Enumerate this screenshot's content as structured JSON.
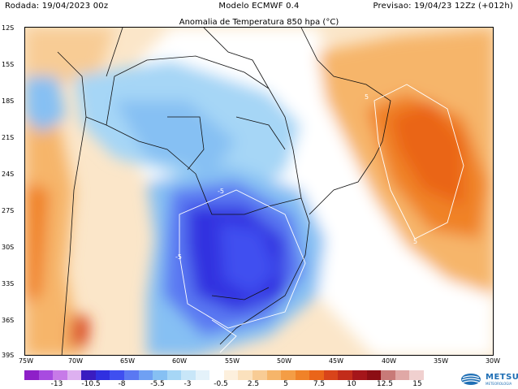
{
  "header": {
    "run_label": "Rodada: 19/04/2023 00z",
    "model_label": "Modelo ECMWF 0.4",
    "forecast_label": "Previsao: 19/04/23 12Zz (+012h)"
  },
  "map": {
    "title": "Anomalia de Temperatura 850 hpa (°C)",
    "lat_labels": [
      "12S",
      "15S",
      "18S",
      "21S",
      "24S",
      "27S",
      "30S",
      "33S",
      "36S",
      "39S"
    ],
    "lon_labels": [
      "75W",
      "70W",
      "65W",
      "60W",
      "55W",
      "50W",
      "45W",
      "40W",
      "35W",
      "30W"
    ],
    "contour_labels": [
      "5",
      "-5",
      "5",
      "-5"
    ],
    "colors": {
      "ocean_bg": "#fbe6c9",
      "deep_blue": "#2a1fe0",
      "blue": "#4f6ff0",
      "light_blue": "#8fc3f2",
      "pale_blue": "#cfe6f8",
      "orange": "#f6a748",
      "dark_orange": "#f0701f",
      "red_orange": "#e85118"
    }
  },
  "colorbar": {
    "tick_labels": [
      "-13",
      "-10.5",
      "-8",
      "-5.5",
      "-3",
      "-0.5",
      "2.5",
      "5",
      "7.5",
      "10",
      "12.5",
      "15"
    ],
    "colors": [
      "#8e1fc8",
      "#a84be0",
      "#c77ae8",
      "#ddb0f0",
      "#3a1cc0",
      "#3030e0",
      "#3f4ff0",
      "#5a78f2",
      "#6fa0f3",
      "#86c0f3",
      "#a6d6f6",
      "#c8e6f8",
      "#e4f2fa",
      "#ffffff",
      "#fdf0dd",
      "#fbe1bd",
      "#f8cc95",
      "#f6b56a",
      "#f49d45",
      "#f08228",
      "#ea6519",
      "#d9441a",
      "#c22c1a",
      "#a5161a",
      "#8c0e14",
      "#c87a78",
      "#e0a8a6",
      "#f0d0cf"
    ]
  },
  "logo": {
    "name": "METSUL",
    "sub": "METEOROLOGIA"
  }
}
